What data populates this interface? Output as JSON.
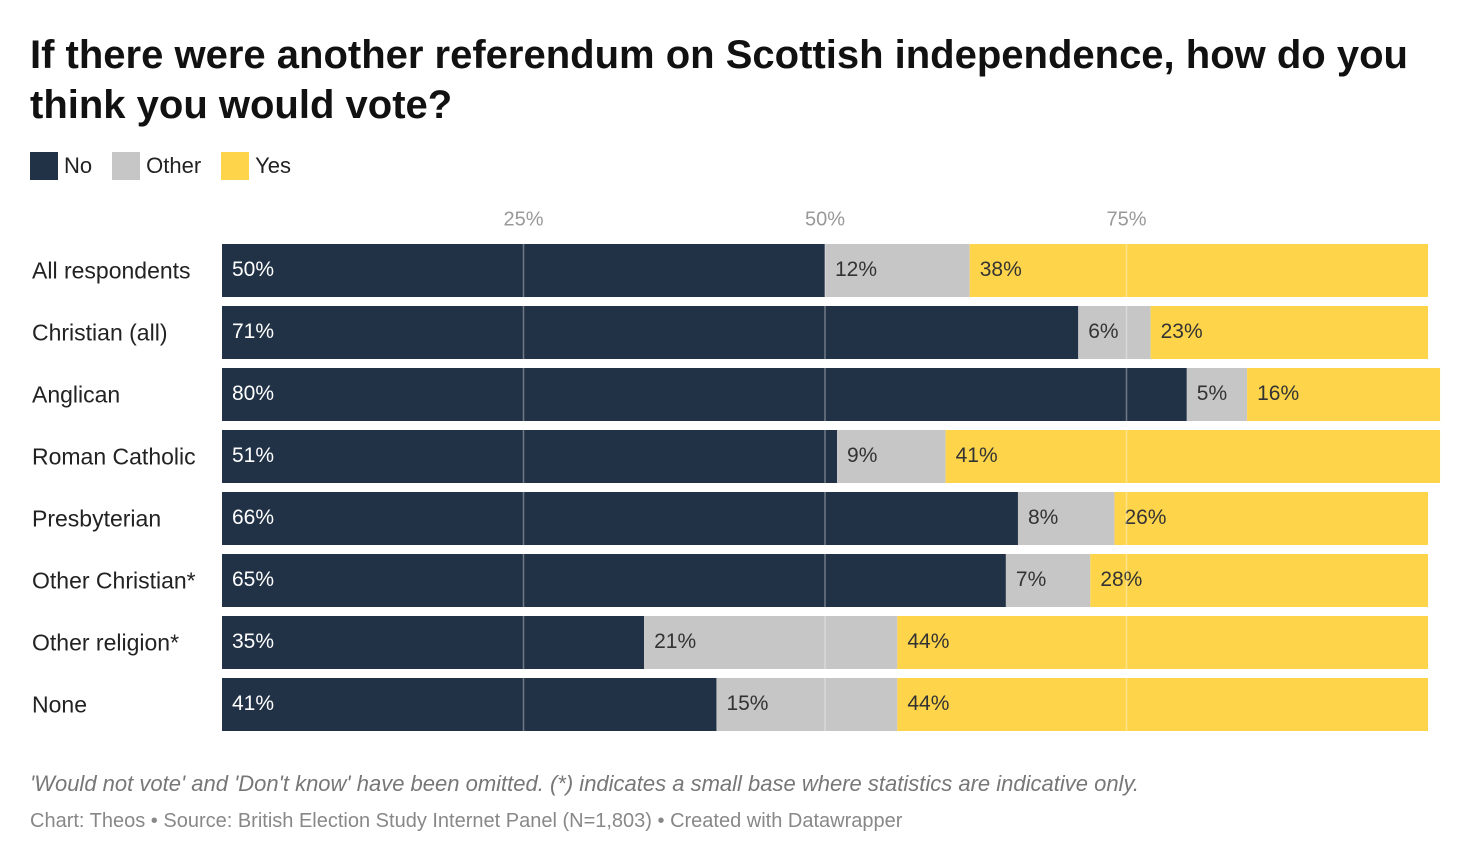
{
  "chart_data": {
    "type": "bar",
    "orientation": "horizontal",
    "stacked": true,
    "title": "If there were another referendum on Scottish independence, how do you think you would vote?",
    "categories": [
      "All respondents",
      "Christian (all)",
      "Anglican",
      "Roman Catholic",
      "Presbyterian",
      "Other Christian*",
      "Other religion*",
      "None"
    ],
    "series": [
      {
        "name": "No",
        "color": "#223246",
        "label_color": "#ffffff",
        "values": [
          50,
          71,
          80,
          51,
          66,
          65,
          35,
          41
        ],
        "value_labels": [
          "50%",
          "71%",
          "80%",
          "51%",
          "66%",
          "65%",
          "35%",
          "41%"
        ]
      },
      {
        "name": "Other",
        "color": "#c6c6c6",
        "label_color": "#333333",
        "values": [
          12,
          6,
          5,
          9,
          8,
          7,
          21,
          15
        ],
        "value_labels": [
          "12%",
          "6%",
          "5%",
          "9%",
          "8%",
          "7%",
          "21%",
          "15%"
        ]
      },
      {
        "name": "Yes",
        "color": "#fed54a",
        "label_color": "#333333",
        "values": [
          38,
          23,
          16,
          41,
          26,
          28,
          44,
          44
        ],
        "value_labels": [
          "38%",
          "23%",
          "16%",
          "41%",
          "26%",
          "28%",
          "44%",
          "44%"
        ]
      }
    ],
    "xlim": [
      0,
      100
    ],
    "xticks": [
      {
        "value": 25,
        "label": "25%"
      },
      {
        "value": 50,
        "label": "50%"
      },
      {
        "value": 75,
        "label": "75%"
      }
    ],
    "grid": true,
    "note": "'Would not vote' and 'Don't know' have been omitted. (*) indicates a small base where statistics are indicative only.",
    "source": "Chart: Theos • Source: British Election Study Internet Panel (N=1,803) • Created with Datawrapper"
  }
}
